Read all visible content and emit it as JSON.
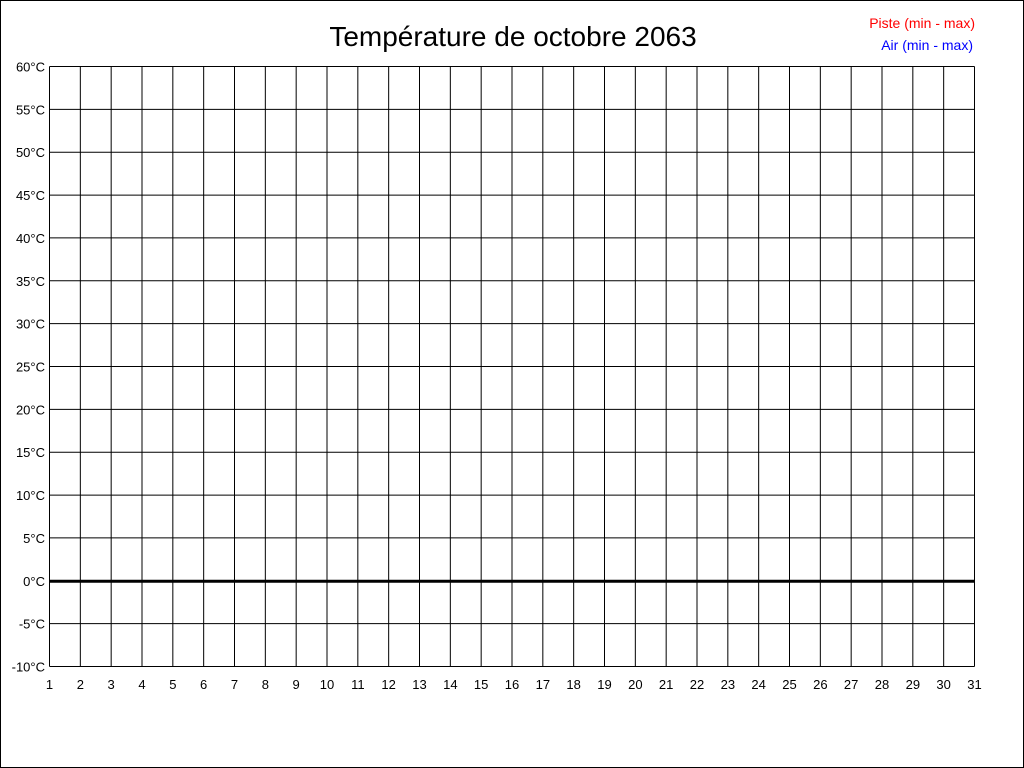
{
  "chart_data": {
    "type": "line",
    "title": "Température de octobre 2063",
    "xlabel": "",
    "ylabel": "",
    "x_ticks": [
      "1",
      "2",
      "3",
      "4",
      "5",
      "6",
      "7",
      "8",
      "9",
      "10",
      "11",
      "12",
      "13",
      "14",
      "15",
      "16",
      "17",
      "18",
      "19",
      "20",
      "21",
      "22",
      "23",
      "24",
      "25",
      "26",
      "27",
      "28",
      "29",
      "30",
      "31"
    ],
    "xlim": [
      1,
      31
    ],
    "y_ticks": [
      60,
      55,
      50,
      45,
      40,
      35,
      30,
      25,
      20,
      15,
      10,
      5,
      0,
      -5,
      -10
    ],
    "y_tick_labels": [
      "60°C",
      "55°C",
      "50°C",
      "45°C",
      "40°C",
      "35°C",
      "30°C",
      "25°C",
      "20°C",
      "15°C",
      "10°C",
      "5°C",
      "0°C",
      "-5°C",
      "-10°C"
    ],
    "ylim": [
      -10,
      60
    ],
    "grid": true,
    "legend_position": "top-right",
    "series": [
      {
        "name": "Piste (min - max)",
        "color": "#ff0000",
        "values": []
      },
      {
        "name": "Air (min - max)",
        "color": "#0000ff",
        "values": []
      }
    ]
  }
}
